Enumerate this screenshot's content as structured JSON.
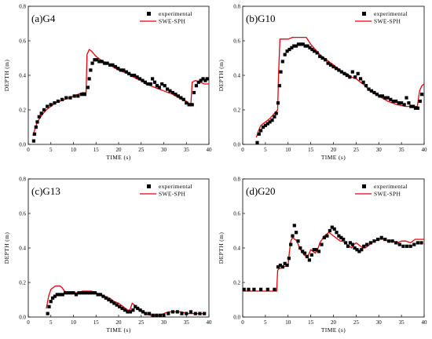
{
  "colors": {
    "experimental": "#000000",
    "model": "#e8000b",
    "axis": "#000000"
  },
  "chart_data": [
    {
      "type": "scatter",
      "panel_label": "(a)G4",
      "xlabel": "TIME (s)",
      "ylabel": "DEPTH (m)",
      "xlim": [
        0,
        40
      ],
      "ylim": [
        0,
        0.8
      ],
      "xticks": [
        "0",
        "5",
        "10",
        "15",
        "20",
        "25",
        "30",
        "35",
        "40"
      ],
      "yticks": [
        "0.0",
        "0.2",
        "0.4",
        "0.6",
        "0.8"
      ],
      "legend_position": "top-right",
      "series": [
        {
          "name": "experimental",
          "kind": "markers",
          "x": [
            1.2,
            1.4,
            1.7,
            2,
            2.4,
            2.9,
            3.5,
            4.2,
            5,
            5.8,
            6.6,
            7.5,
            8.4,
            9.3,
            10.2,
            11,
            11.8,
            12.5,
            13.2,
            13.5,
            13.8,
            14.2,
            14.7,
            15.2,
            15.7,
            16.3,
            16.9,
            17.5,
            18.1,
            18.7,
            19.3,
            19.9,
            20.5,
            21.1,
            21.7,
            22.3,
            22.9,
            23.5,
            24.1,
            24.7,
            25.3,
            25.9,
            26.5,
            27.1,
            27.5,
            28,
            28.5,
            29,
            29.6,
            30.2,
            30.8,
            31.4,
            32,
            32.6,
            33.2,
            33.8,
            34.4,
            35,
            35.6,
            36,
            36.3,
            36.7,
            37.2,
            37.7,
            38.2,
            38.7,
            39.2,
            39.6
          ],
          "y": [
            0.02,
            0.06,
            0.1,
            0.13,
            0.16,
            0.18,
            0.2,
            0.22,
            0.23,
            0.24,
            0.25,
            0.26,
            0.27,
            0.27,
            0.28,
            0.28,
            0.29,
            0.29,
            0.33,
            0.38,
            0.43,
            0.47,
            0.49,
            0.49,
            0.48,
            0.48,
            0.47,
            0.47,
            0.46,
            0.46,
            0.45,
            0.44,
            0.43,
            0.43,
            0.42,
            0.41,
            0.4,
            0.4,
            0.39,
            0.38,
            0.37,
            0.36,
            0.35,
            0.35,
            0.38,
            0.36,
            0.34,
            0.33,
            0.35,
            0.34,
            0.32,
            0.31,
            0.3,
            0.29,
            0.28,
            0.27,
            0.26,
            0.24,
            0.23,
            0.23,
            0.23,
            0.3,
            0.34,
            0.36,
            0.37,
            0.38,
            0.37,
            0.38
          ]
        },
        {
          "name": "SWE-SPH",
          "kind": "line",
          "x": [
            1,
            1.5,
            2,
            3,
            4,
            5,
            6,
            7,
            8,
            9,
            10,
            11,
            12,
            12.8,
            13,
            13.5,
            14,
            15,
            16,
            18,
            20,
            22,
            24,
            25,
            26,
            27,
            28,
            30,
            32,
            34,
            35,
            35.5,
            36,
            36.3,
            37,
            38,
            39,
            40
          ],
          "y": [
            0.05,
            0.09,
            0.13,
            0.17,
            0.2,
            0.22,
            0.24,
            0.25,
            0.26,
            0.27,
            0.28,
            0.29,
            0.3,
            0.3,
            0.52,
            0.55,
            0.54,
            0.51,
            0.49,
            0.46,
            0.43,
            0.41,
            0.38,
            0.37,
            0.35,
            0.34,
            0.33,
            0.31,
            0.29,
            0.26,
            0.25,
            0.24,
            0.23,
            0.36,
            0.37,
            0.36,
            0.35,
            0.35
          ]
        }
      ]
    },
    {
      "type": "scatter",
      "panel_label": "(b)G10",
      "xlabel": "TIME (s)",
      "ylabel": "DEPTH (m)",
      "xlim": [
        0,
        40
      ],
      "ylim": [
        0,
        0.8
      ],
      "xticks": [
        "0",
        "5",
        "10",
        "15",
        "20",
        "25",
        "30",
        "35",
        "40"
      ],
      "yticks": [
        "0.0",
        "0.2",
        "0.4",
        "0.6",
        "0.8"
      ],
      "legend_position": "top-right",
      "series": [
        {
          "name": "experimental",
          "kind": "markers",
          "x": [
            3.2,
            3.6,
            4,
            4.5,
            5,
            5.5,
            6,
            6.5,
            7,
            7.4,
            7.8,
            8.1,
            8.4,
            8.8,
            9.3,
            9.8,
            10.3,
            10.8,
            11.3,
            11.8,
            12.3,
            12.8,
            13.3,
            13.8,
            14.3,
            14.8,
            15.3,
            15.8,
            16.4,
            17,
            17.6,
            18.2,
            18.8,
            19.4,
            20,
            20.6,
            21.2,
            21.8,
            22.4,
            23,
            23.6,
            24.2,
            24.8,
            25.4,
            26,
            26.6,
            27.2,
            27.8,
            28.4,
            29,
            29.6,
            30.2,
            30.8,
            31.4,
            32,
            32.6,
            33.2,
            33.8,
            34.4,
            35,
            35.6,
            36.1,
            36.6,
            37.1,
            37.6,
            38.1,
            38.6,
            39.1,
            39.5
          ],
          "y": [
            0.01,
            0.06,
            0.08,
            0.1,
            0.11,
            0.12,
            0.13,
            0.14,
            0.16,
            0.18,
            0.24,
            0.34,
            0.42,
            0.48,
            0.52,
            0.54,
            0.55,
            0.56,
            0.57,
            0.57,
            0.58,
            0.58,
            0.58,
            0.57,
            0.57,
            0.56,
            0.55,
            0.54,
            0.53,
            0.51,
            0.5,
            0.49,
            0.47,
            0.46,
            0.45,
            0.44,
            0.43,
            0.42,
            0.41,
            0.4,
            0.39,
            0.42,
            0.39,
            0.41,
            0.38,
            0.36,
            0.34,
            0.32,
            0.31,
            0.3,
            0.29,
            0.28,
            0.28,
            0.27,
            0.27,
            0.26,
            0.25,
            0.25,
            0.24,
            0.24,
            0.23,
            0.27,
            0.24,
            0.22,
            0.22,
            0.21,
            0.21,
            0.25,
            0.29
          ]
        },
        {
          "name": "SWE-SPH",
          "kind": "line",
          "x": [
            3,
            3.5,
            4,
            5,
            6,
            7,
            7.7,
            7.9,
            8.2,
            9,
            10,
            11,
            12,
            13,
            14,
            15,
            16,
            17,
            18,
            19,
            20,
            21,
            22,
            23,
            24,
            25,
            26,
            27,
            28,
            30,
            32,
            34,
            36,
            37,
            38,
            38.5,
            39,
            39.5,
            40
          ],
          "y": [
            0.04,
            0.08,
            0.11,
            0.13,
            0.15,
            0.18,
            0.2,
            0.4,
            0.61,
            0.61,
            0.61,
            0.62,
            0.62,
            0.62,
            0.62,
            0.58,
            0.55,
            0.52,
            0.5,
            0.48,
            0.46,
            0.44,
            0.42,
            0.41,
            0.39,
            0.38,
            0.36,
            0.34,
            0.31,
            0.28,
            0.25,
            0.23,
            0.22,
            0.22,
            0.22,
            0.22,
            0.31,
            0.34,
            0.35
          ]
        }
      ]
    },
    {
      "type": "scatter",
      "panel_label": "(c)G13",
      "xlabel": "TIME (s)",
      "ylabel": "DEPTH (m)",
      "xlim": [
        0,
        40
      ],
      "ylim": [
        0,
        0.8
      ],
      "xticks": [
        "0",
        "5",
        "10",
        "15",
        "20",
        "25",
        "30",
        "35",
        "40"
      ],
      "yticks": [
        "0.0",
        "0.2",
        "0.4",
        "0.6",
        "0.8"
      ],
      "legend_position": "top-right",
      "series": [
        {
          "name": "experimental",
          "kind": "markers",
          "x": [
            4.3,
            4.6,
            5,
            5.4,
            5.9,
            6.4,
            7,
            7.6,
            8.2,
            8.8,
            9.4,
            10,
            10.6,
            11.2,
            11.8,
            12.4,
            13,
            13.6,
            14.2,
            14.8,
            15.4,
            16,
            16.6,
            17.2,
            17.8,
            18.4,
            19,
            19.6,
            20.2,
            20.8,
            21.4,
            22,
            22.6,
            23.2,
            23.7,
            24.2,
            24.8,
            25.4,
            26,
            26.8,
            27.6,
            28.4,
            29.2,
            30,
            31,
            32,
            33,
            34,
            35,
            36,
            37,
            38,
            39
          ],
          "y": [
            0.02,
            0.06,
            0.09,
            0.11,
            0.12,
            0.13,
            0.13,
            0.13,
            0.14,
            0.14,
            0.14,
            0.14,
            0.13,
            0.14,
            0.14,
            0.14,
            0.14,
            0.14,
            0.14,
            0.14,
            0.13,
            0.13,
            0.12,
            0.11,
            0.1,
            0.09,
            0.08,
            0.07,
            0.06,
            0.05,
            0.04,
            0.03,
            0.03,
            0.04,
            0.06,
            0.05,
            0.04,
            0.03,
            0.02,
            0.02,
            0.01,
            0.01,
            0.01,
            0.01,
            0.02,
            0.03,
            0.03,
            0.02,
            0.02,
            0.03,
            0.02,
            0.02,
            0.02
          ]
        },
        {
          "name": "SWE-SPH",
          "kind": "line",
          "x": [
            4,
            4.5,
            5,
            5.5,
            6,
            6.5,
            7,
            7.5,
            8,
            9,
            10,
            11,
            12,
            13,
            14,
            15,
            16,
            17,
            18,
            19,
            20,
            21,
            22,
            22.5,
            23,
            23.5,
            24,
            25,
            26,
            27,
            28,
            29,
            30,
            31,
            32,
            33,
            34,
            35,
            36,
            37,
            38,
            39
          ],
          "y": [
            0.05,
            0.12,
            0.16,
            0.17,
            0.18,
            0.18,
            0.18,
            0.17,
            0.15,
            0.14,
            0.14,
            0.14,
            0.15,
            0.15,
            0.15,
            0.14,
            0.13,
            0.12,
            0.11,
            0.09,
            0.08,
            0.06,
            0.04,
            0.04,
            0.08,
            0.07,
            0.05,
            0.03,
            0.02,
            0.01,
            0.01,
            0.01,
            0.02,
            0.03,
            0.03,
            0.03,
            0.03,
            0.02,
            0.02,
            0.02,
            0.02,
            0.02
          ]
        }
      ]
    },
    {
      "type": "scatter",
      "panel_label": "(d)G20",
      "xlabel": "TIME (s)",
      "ylabel": "DEPTH (m)",
      "xlim": [
        0,
        40
      ],
      "ylim": [
        0,
        0.8
      ],
      "xticks": [
        "0",
        "5",
        "10",
        "15",
        "20",
        "25",
        "30",
        "35",
        "40"
      ],
      "yticks": [
        "0.0",
        "0.2",
        "0.4",
        "0.6",
        "0.8"
      ],
      "legend_position": "top-right",
      "series": [
        {
          "name": "experimental",
          "kind": "markers",
          "x": [
            0.3,
            1.3,
            2.5,
            4,
            5.5,
            7,
            7.8,
            8.3,
            8.8,
            9.3,
            9.8,
            10.2,
            10.6,
            11,
            11.4,
            11.8,
            12.2,
            12.7,
            13.2,
            13.7,
            14.2,
            14.7,
            15.2,
            15.7,
            16.2,
            16.8,
            17.4,
            18,
            18.6,
            19.2,
            19.7,
            20.2,
            20.7,
            21.2,
            21.7,
            22.2,
            22.7,
            23.2,
            23.7,
            24.2,
            24.7,
            25.2,
            25.7,
            26.2,
            26.7,
            27.4,
            28.2,
            29,
            29.8,
            30.6,
            31.4,
            32.2,
            33,
            33.8,
            34.6,
            35.4,
            36.2,
            37,
            37.8,
            38.6,
            39.4
          ],
          "y": [
            0.16,
            0.16,
            0.16,
            0.16,
            0.16,
            0.16,
            0.29,
            0.3,
            0.29,
            0.31,
            0.3,
            0.34,
            0.42,
            0.47,
            0.53,
            0.49,
            0.44,
            0.4,
            0.38,
            0.37,
            0.35,
            0.33,
            0.36,
            0.39,
            0.39,
            0.38,
            0.42,
            0.46,
            0.47,
            0.5,
            0.52,
            0.51,
            0.49,
            0.47,
            0.46,
            0.45,
            0.43,
            0.41,
            0.43,
            0.42,
            0.4,
            0.39,
            0.38,
            0.39,
            0.41,
            0.42,
            0.43,
            0.44,
            0.45,
            0.46,
            0.45,
            0.44,
            0.44,
            0.43,
            0.42,
            0.41,
            0.41,
            0.41,
            0.42,
            0.43,
            0.43
          ]
        },
        {
          "name": "SWE-SPH",
          "kind": "line",
          "x": [
            0,
            1,
            2,
            3,
            4,
            5,
            6,
            7,
            7.5,
            7.7,
            8,
            9,
            10,
            10.3,
            10.6,
            11,
            11.5,
            12,
            12.5,
            13,
            13.5,
            14,
            14.5,
            15,
            15.5,
            16,
            16.5,
            17,
            17.5,
            18,
            18.5,
            19,
            19.5,
            20,
            20.5,
            21,
            21.5,
            22,
            22.5,
            23,
            23.5,
            24,
            24.5,
            25,
            25.5,
            26,
            26.5,
            27,
            27.5,
            28,
            29,
            30,
            31,
            32,
            33,
            34,
            35,
            36,
            37,
            38,
            39,
            40
          ],
          "y": [
            0.15,
            0.15,
            0.15,
            0.15,
            0.15,
            0.15,
            0.15,
            0.15,
            0.15,
            0.27,
            0.28,
            0.29,
            0.3,
            0.38,
            0.44,
            0.46,
            0.45,
            0.44,
            0.4,
            0.38,
            0.36,
            0.35,
            0.36,
            0.39,
            0.38,
            0.37,
            0.39,
            0.43,
            0.45,
            0.47,
            0.48,
            0.49,
            0.48,
            0.47,
            0.46,
            0.45,
            0.44,
            0.44,
            0.43,
            0.42,
            0.41,
            0.4,
            0.42,
            0.43,
            0.42,
            0.41,
            0.4,
            0.4,
            0.41,
            0.42,
            0.44,
            0.45,
            0.45,
            0.44,
            0.44,
            0.43,
            0.44,
            0.44,
            0.43,
            0.45,
            0.45,
            0.45
          ]
        }
      ]
    }
  ]
}
